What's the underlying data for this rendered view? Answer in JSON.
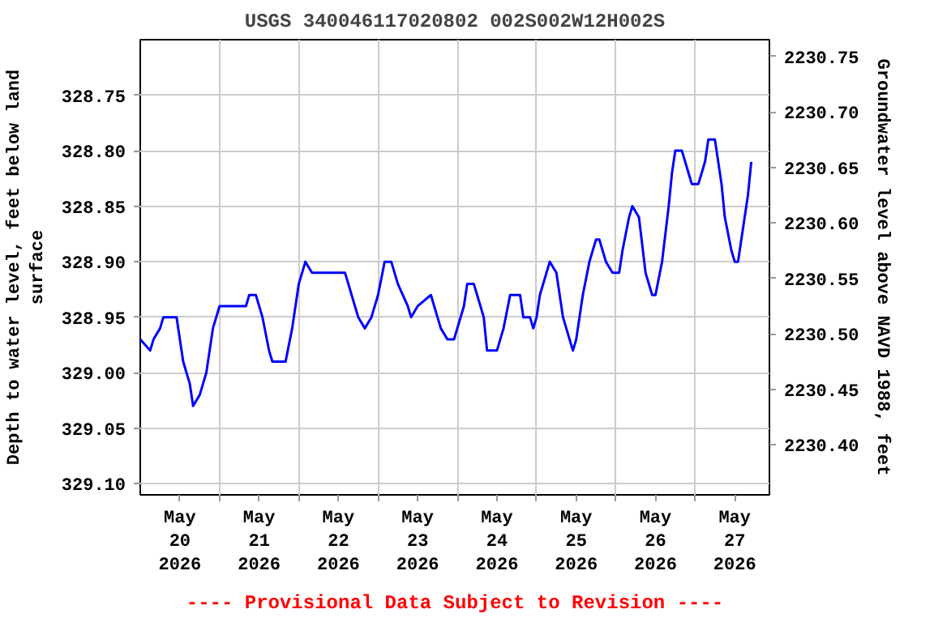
{
  "chart_data": {
    "type": "line",
    "title": "USGS 340046117020802 002S002W12H002S",
    "ylabel": "Depth to water level, feet below land\nsurface",
    "y2label": "Groundwater level above NAVD 1988, feet",
    "annotations": [
      "---- Provisional Data Subject to Revision ----"
    ],
    "x": [
      "2026-05-20T00:00",
      "2026-05-20T03:00",
      "2026-05-20T04:00",
      "2026-05-20T06:00",
      "2026-05-20T07:00",
      "2026-05-20T11:00",
      "2026-05-20T13:00",
      "2026-05-20T15:00",
      "2026-05-20T16:00",
      "2026-05-20T18:00",
      "2026-05-20T20:00",
      "2026-05-20T22:00",
      "2026-05-21T00:00",
      "2026-05-21T08:00",
      "2026-05-21T09:00",
      "2026-05-21T11:00",
      "2026-05-21T13:00",
      "2026-05-21T15:00",
      "2026-05-21T16:00",
      "2026-05-21T20:00",
      "2026-05-21T22:00",
      "2026-05-22T00:00",
      "2026-05-22T02:00",
      "2026-05-22T04:00",
      "2026-05-22T14:00",
      "2026-05-22T16:00",
      "2026-05-22T18:00",
      "2026-05-22T20:00",
      "2026-05-22T22:00",
      "2026-05-23T00:00",
      "2026-05-23T02:00",
      "2026-05-23T04:00",
      "2026-05-23T06:00",
      "2026-05-23T09:00",
      "2026-05-23T10:00",
      "2026-05-23T12:00",
      "2026-05-23T16:00",
      "2026-05-23T17:00",
      "2026-05-23T18:00",
      "2026-05-23T19:00",
      "2026-05-23T21:00",
      "2026-05-23T23:00",
      "2026-05-24T00:00",
      "2026-05-24T02:00",
      "2026-05-24T03:00",
      "2026-05-24T05:00",
      "2026-05-24T06:00",
      "2026-05-24T08:00",
      "2026-05-24T09:00",
      "2026-05-24T12:00",
      "2026-05-24T14:00",
      "2026-05-24T16:00",
      "2026-05-24T19:00",
      "2026-05-24T20:00",
      "2026-05-24T22:00",
      "2026-05-24T23:00",
      "2026-05-25T00:00",
      "2026-05-25T01:00",
      "2026-05-25T04:00",
      "2026-05-25T06:00",
      "2026-05-25T08:00",
      "2026-05-25T10:00",
      "2026-05-25T11:00",
      "2026-05-25T12:00",
      "2026-05-25T14:00",
      "2026-05-25T16:00",
      "2026-05-25T18:00",
      "2026-05-25T19:00",
      "2026-05-25T21:00",
      "2026-05-25T23:00",
      "2026-05-26T01:00",
      "2026-05-26T02:00",
      "2026-05-26T04:00",
      "2026-05-26T05:00",
      "2026-05-26T07:00",
      "2026-05-26T09:00",
      "2026-05-26T11:00",
      "2026-05-26T12:00",
      "2026-05-26T14:00",
      "2026-05-26T16:00",
      "2026-05-26T17:00",
      "2026-05-26T18:00",
      "2026-05-26T20:00",
      "2026-05-26T22:00",
      "2026-05-26T23:00",
      "2026-05-27T01:00",
      "2026-05-27T03:00",
      "2026-05-27T04:00",
      "2026-05-27T06:00",
      "2026-05-27T08:00",
      "2026-05-27T09:00",
      "2026-05-27T11:00",
      "2026-05-27T12:00",
      "2026-05-27T13:00",
      "2026-05-27T14:00",
      "2026-05-27T16:00",
      "2026-05-27T17:00"
    ],
    "series": [
      {
        "color": "#0000ff",
        "values": [
          328.97,
          328.98,
          328.97,
          328.96,
          328.95,
          328.95,
          328.99,
          329.01,
          329.03,
          329.02,
          329.0,
          328.96,
          328.94,
          328.94,
          328.93,
          328.93,
          328.95,
          328.98,
          328.99,
          328.99,
          328.96,
          328.92,
          328.9,
          328.91,
          328.91,
          328.93,
          328.95,
          328.96,
          328.95,
          328.93,
          328.9,
          328.9,
          328.92,
          328.94,
          328.95,
          328.94,
          328.93,
          328.94,
          328.95,
          328.96,
          328.97,
          328.97,
          328.96,
          328.94,
          328.92,
          328.92,
          328.93,
          328.95,
          328.98,
          328.98,
          328.96,
          328.93,
          328.93,
          328.95,
          328.95,
          328.96,
          328.95,
          328.93,
          328.9,
          328.91,
          328.95,
          328.97,
          328.98,
          328.97,
          328.93,
          328.9,
          328.88,
          328.88,
          328.9,
          328.91,
          328.91,
          328.89,
          328.86,
          328.85,
          328.86,
          328.91,
          328.93,
          328.93,
          328.9,
          328.85,
          328.82,
          328.8,
          328.8,
          328.82,
          328.83,
          328.83,
          328.81,
          328.79,
          328.79,
          328.83,
          328.86,
          328.89,
          328.9,
          328.9,
          328.88,
          328.84,
          328.81
        ]
      }
    ],
    "xlim": [
      "2026-05-20T00:00",
      "2026-05-27T22:30"
    ],
    "xticks": [
      {
        "value": "2026-05-20T12:00",
        "label": "May\n20\n2026"
      },
      {
        "value": "2026-05-21T12:00",
        "label": "May\n21\n2026"
      },
      {
        "value": "2026-05-22T12:00",
        "label": "May\n22\n2026"
      },
      {
        "value": "2026-05-23T12:00",
        "label": "May\n23\n2026"
      },
      {
        "value": "2026-05-24T12:00",
        "label": "May\n24\n2026"
      },
      {
        "value": "2026-05-25T12:00",
        "label": "May\n25\n2026"
      },
      {
        "value": "2026-05-26T12:00",
        "label": "May\n26\n2026"
      },
      {
        "value": "2026-05-27T12:00",
        "label": "May\n27\n2026"
      },
      {
        "value": "2026-05-21T00:00",
        "label": null
      },
      {
        "value": "2026-05-22T00:00",
        "label": null
      },
      {
        "value": "2026-05-23T00:00",
        "label": null
      },
      {
        "value": "2026-05-24T00:00",
        "label": null
      },
      {
        "value": "2026-05-25T00:00",
        "label": null
      },
      {
        "value": "2026-05-26T00:00",
        "label": null
      },
      {
        "value": "2026-05-27T00:00",
        "label": null
      }
    ],
    "ylim": [
      329.11,
      328.7
    ],
    "yticks": [
      328.75,
      {
        "value": 328.8,
        "label": "328.80"
      },
      328.85,
      {
        "value": 328.9,
        "label": "328.90"
      },
      328.95,
      {
        "value": 329.0,
        "label": "329.00"
      },
      329.05,
      {
        "value": 329.1,
        "label": "329.10"
      }
    ],
    "y2lim": [
      2230.355,
      2230.765
    ],
    "y2ticks": [
      2230.75,
      {
        "value": 2230.7,
        "label": "2230.70"
      },
      2230.65,
      {
        "value": 2230.6,
        "label": "2230.60"
      },
      2230.55,
      {
        "value": 2230.5,
        "label": "2230.50"
      },
      2230.45,
      {
        "value": 2230.4,
        "label": "2230.40"
      }
    ],
    "grid": true
  }
}
